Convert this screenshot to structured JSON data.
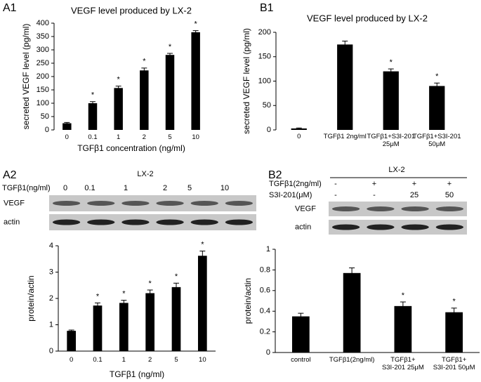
{
  "panels": {
    "a1": "A1",
    "b1": "B1",
    "a2": "A2",
    "b2": "B2"
  },
  "chart_data": [
    {
      "type": "bar",
      "title": "VEGF level produced by LX-2",
      "y_label": "secreted VEGF level (pg/ml)",
      "x_label": "TGFβ1 concentration (ng/ml)",
      "categories": [
        "0",
        "0.1",
        "1",
        "2",
        "5",
        "10"
      ],
      "values": [
        25,
        100,
        157,
        223,
        281,
        366
      ],
      "errors": [
        3,
        6,
        7,
        9,
        6,
        6
      ],
      "annotations": [
        null,
        "*",
        "*",
        "*",
        "*",
        "*"
      ],
      "color": "#000000",
      "ylim": [
        0,
        400
      ],
      "yticks": [
        0,
        50,
        100,
        150,
        200,
        250,
        300,
        350,
        400
      ]
    },
    {
      "type": "bar",
      "title": "VEGF level produced by LX-2",
      "y_label": "secreted VEGF level (pg/ml)",
      "categories": [
        "0",
        "TGFβ1 2ng/ml",
        "TGFβ1+S3I-201\n25μM",
        "TGFβ1+S3I-201\n50μM"
      ],
      "values": [
        3,
        175,
        120,
        90
      ],
      "errors": [
        1,
        7,
        5,
        6
      ],
      "annotations": [
        null,
        null,
        "*",
        "*"
      ],
      "color": "#000000",
      "ylim": [
        0,
        200
      ],
      "yticks": [
        0,
        50,
        100,
        150,
        200
      ]
    },
    {
      "type": "bar",
      "y_label": "protein/actin",
      "x_label": "TGFβ1 (ng/ml)",
      "categories": [
        "0",
        "0.1",
        "1",
        "2",
        "5",
        "10"
      ],
      "values": [
        0.77,
        1.73,
        1.83,
        2.2,
        2.43,
        3.62
      ],
      "errors": [
        0.03,
        0.1,
        0.1,
        0.12,
        0.15,
        0.18
      ],
      "annotations": [
        null,
        "*",
        "*",
        "*",
        "*",
        "*"
      ],
      "color": "#000000",
      "ylim": [
        0,
        4
      ],
      "yticks": [
        0,
        1,
        2,
        3,
        4
      ]
    },
    {
      "type": "bar",
      "y_label": "protein/actin",
      "categories": [
        "control",
        "TGFβ1(2ng/ml)",
        "TGFβ1+\nS3I-201 25μM",
        "TGFβ1+\nS3I-201 50μM"
      ],
      "values": [
        0.35,
        0.77,
        0.45,
        0.39
      ],
      "errors": [
        0.03,
        0.05,
        0.04,
        0.04
      ],
      "annotations": [
        null,
        null,
        "*",
        "*"
      ],
      "color": "#000000",
      "ylim": [
        0,
        1
      ],
      "yticks": [
        0,
        0.2,
        0.4,
        0.6,
        0.8,
        1
      ]
    }
  ],
  "blots": [
    {
      "title": "LX-2",
      "rows": [
        {
          "label": "TGFβ1(ng/ml)",
          "lanes": [
            "0",
            "0.1",
            "1",
            "2",
            "5",
            "10"
          ]
        }
      ],
      "bands": [
        "VEGF",
        "actin"
      ]
    },
    {
      "title": "LX-2",
      "rows": [
        {
          "label": "TGFβ1(2ng/ml)",
          "lanes": [
            "-",
            "+",
            "+",
            "+"
          ]
        },
        {
          "label": "S3I-201(μM)",
          "lanes": [
            "-",
            "-",
            "25",
            "50"
          ]
        }
      ],
      "bands": [
        "VEGF",
        "actin"
      ]
    }
  ]
}
